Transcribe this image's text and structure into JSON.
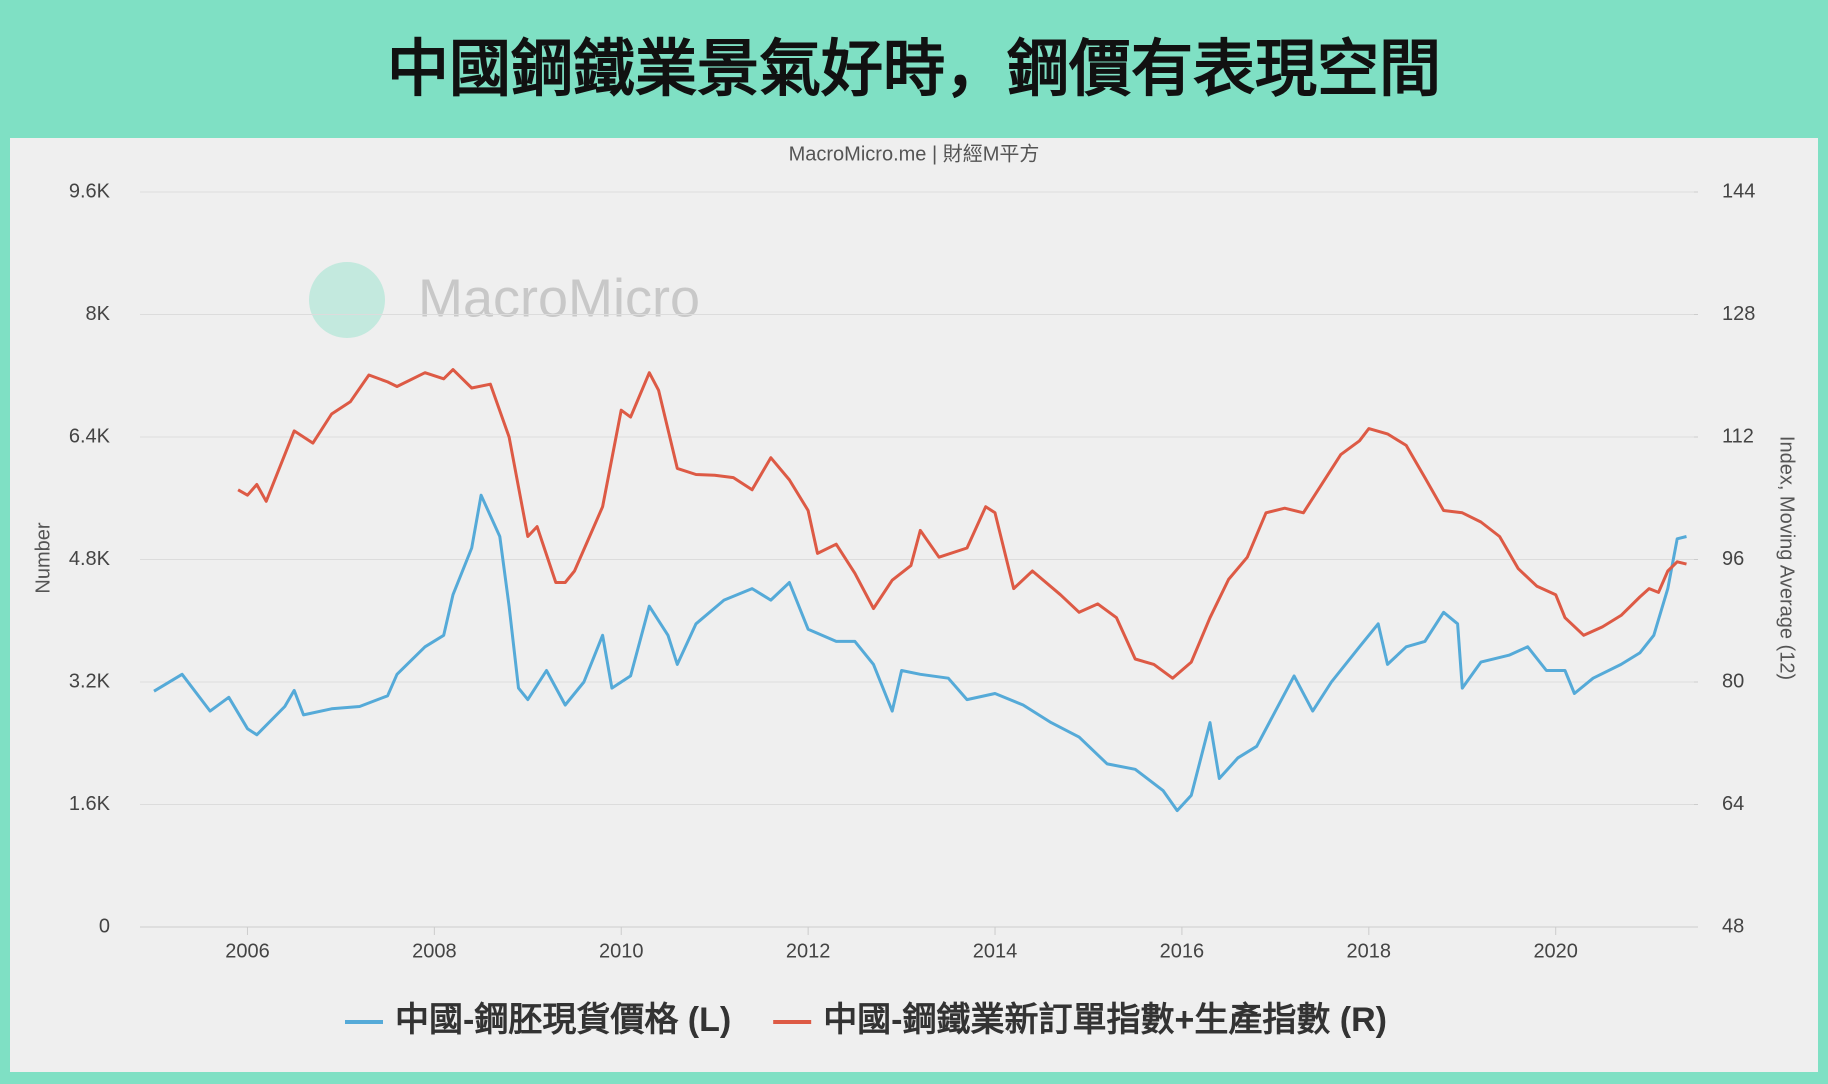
{
  "title": "中國鋼鐵業景氣好時，鋼價有表現空間",
  "chart_data": {
    "type": "line",
    "source": "MacroMicro.me | 財經M平方",
    "watermark": "MacroMicro",
    "y_label": "Number",
    "y2_label": "Index, Moving Average (12)",
    "xlim": [
      2004.85,
      2021.48
    ],
    "xticks": [
      2006,
      2008,
      2010,
      2012,
      2014,
      2016,
      2018,
      2020
    ],
    "ylim": [
      0,
      9600
    ],
    "yticks": [
      0,
      {
        "value": 1600,
        "label": "1.6K"
      },
      {
        "value": 3200,
        "label": "3.2K"
      },
      {
        "value": 4800,
        "label": "4.8K"
      },
      {
        "value": 6400,
        "label": "6.4K"
      },
      {
        "value": 8000,
        "label": "8K"
      },
      {
        "value": 9600,
        "label": "9.6K"
      }
    ],
    "y2lim": [
      48,
      144
    ],
    "y2ticks": [
      48,
      64,
      80,
      96,
      112,
      128,
      144
    ],
    "grid": true,
    "series": [
      {
        "name": "中國-鋼胚現貨價格 (L)",
        "color": "#55aad8",
        "axis": "y",
        "x": [
          2005.0,
          2005.3,
          2005.6,
          2005.8,
          2006.0,
          2006.1,
          2006.4,
          2006.5,
          2006.6,
          2006.9,
          2007.2,
          2007.5,
          2007.6,
          2007.9,
          2008.1,
          2008.2,
          2008.4,
          2008.5,
          2008.7,
          2008.8,
          2008.9,
          2009.0,
          2009.2,
          2009.4,
          2009.6,
          2009.8,
          2009.9,
          2010.1,
          2010.3,
          2010.5,
          2010.6,
          2010.8,
          2011.1,
          2011.4,
          2011.6,
          2011.8,
          2012.0,
          2012.3,
          2012.5,
          2012.7,
          2012.9,
          2013.0,
          2013.2,
          2013.5,
          2013.7,
          2014.0,
          2014.3,
          2014.6,
          2014.9,
          2015.2,
          2015.5,
          2015.8,
          2015.95,
          2016.1,
          2016.3,
          2016.4,
          2016.6,
          2016.8,
          2017.0,
          2017.2,
          2017.4,
          2017.6,
          2017.9,
          2018.1,
          2018.2,
          2018.4,
          2018.6,
          2018.8,
          2018.95,
          2019.0,
          2019.2,
          2019.5,
          2019.7,
          2019.9,
          2020.1,
          2020.2,
          2020.4,
          2020.7,
          2020.9,
          2021.05,
          2021.2,
          2021.3,
          2021.4
        ],
        "values": [
          3080,
          3300,
          2820,
          3000,
          2590,
          2510,
          2880,
          3090,
          2770,
          2850,
          2880,
          3020,
          3300,
          3660,
          3810,
          4340,
          4950,
          5640,
          5100,
          4190,
          3120,
          2970,
          3350,
          2900,
          3200,
          3810,
          3120,
          3280,
          4190,
          3810,
          3430,
          3960,
          4270,
          4420,
          4270,
          4500,
          3890,
          3730,
          3730,
          3430,
          2820,
          3350,
          3300,
          3250,
          2970,
          3050,
          2900,
          2670,
          2480,
          2130,
          2060,
          1780,
          1520,
          1720,
          2670,
          1940,
          2210,
          2360,
          2820,
          3280,
          2820,
          3200,
          3660,
          3960,
          3430,
          3660,
          3730,
          4110,
          3960,
          3120,
          3460,
          3550,
          3660,
          3350,
          3350,
          3050,
          3250,
          3430,
          3580,
          3810,
          4420,
          5070,
          5100
        ]
      },
      {
        "name": "中國-鋼鐵業新訂單指數+生產指數 (R)",
        "color": "#dd5a45",
        "axis": "y2",
        "x": [
          2005.9,
          2006.0,
          2006.1,
          2006.2,
          2006.5,
          2006.7,
          2006.9,
          2007.1,
          2007.3,
          2007.5,
          2007.6,
          2007.9,
          2008.1,
          2008.2,
          2008.4,
          2008.6,
          2008.8,
          2009.0,
          2009.1,
          2009.3,
          2009.4,
          2009.5,
          2009.8,
          2010.0,
          2010.1,
          2010.3,
          2010.4,
          2010.6,
          2010.8,
          2011.0,
          2011.2,
          2011.4,
          2011.6,
          2011.8,
          2012.0,
          2012.1,
          2012.3,
          2012.5,
          2012.7,
          2012.9,
          2013.1,
          2013.2,
          2013.4,
          2013.7,
          2013.9,
          2014.0,
          2014.2,
          2014.4,
          2014.7,
          2014.9,
          2015.1,
          2015.3,
          2015.5,
          2015.7,
          2015.9,
          2016.1,
          2016.3,
          2016.5,
          2016.7,
          2016.9,
          2017.1,
          2017.3,
          2017.5,
          2017.7,
          2017.9,
          2018.0,
          2018.2,
          2018.4,
          2018.6,
          2018.8,
          2019.0,
          2019.2,
          2019.4,
          2019.6,
          2019.8,
          2020.0,
          2020.1,
          2020.3,
          2020.5,
          2020.7,
          2020.9,
          2021.0,
          2021.1,
          2021.2,
          2021.3,
          2021.4
        ],
        "values": [
          105.1,
          104.4,
          105.8,
          103.6,
          112.8,
          111.2,
          115.0,
          116.6,
          120.1,
          119.2,
          118.6,
          120.4,
          119.6,
          120.8,
          118.4,
          118.9,
          112.0,
          99.0,
          100.3,
          93.0,
          93.0,
          94.5,
          102.9,
          115.5,
          114.6,
          120.4,
          118.1,
          107.9,
          107.1,
          107.0,
          106.7,
          105.1,
          109.3,
          106.4,
          102.4,
          96.8,
          98.0,
          94.2,
          89.6,
          93.3,
          95.2,
          99.8,
          96.3,
          97.5,
          102.9,
          102.1,
          92.2,
          94.5,
          91.4,
          89.1,
          90.2,
          88.4,
          83.0,
          82.3,
          80.5,
          82.6,
          88.4,
          93.4,
          96.3,
          102.1,
          102.7,
          102.1,
          105.9,
          109.7,
          111.5,
          113.1,
          112.4,
          110.9,
          106.7,
          102.4,
          102.1,
          100.9,
          99.0,
          94.8,
          92.5,
          91.4,
          88.4,
          86.1,
          87.2,
          88.7,
          91.1,
          92.2,
          91.7,
          94.5,
          95.7,
          95.4
        ]
      }
    ]
  }
}
